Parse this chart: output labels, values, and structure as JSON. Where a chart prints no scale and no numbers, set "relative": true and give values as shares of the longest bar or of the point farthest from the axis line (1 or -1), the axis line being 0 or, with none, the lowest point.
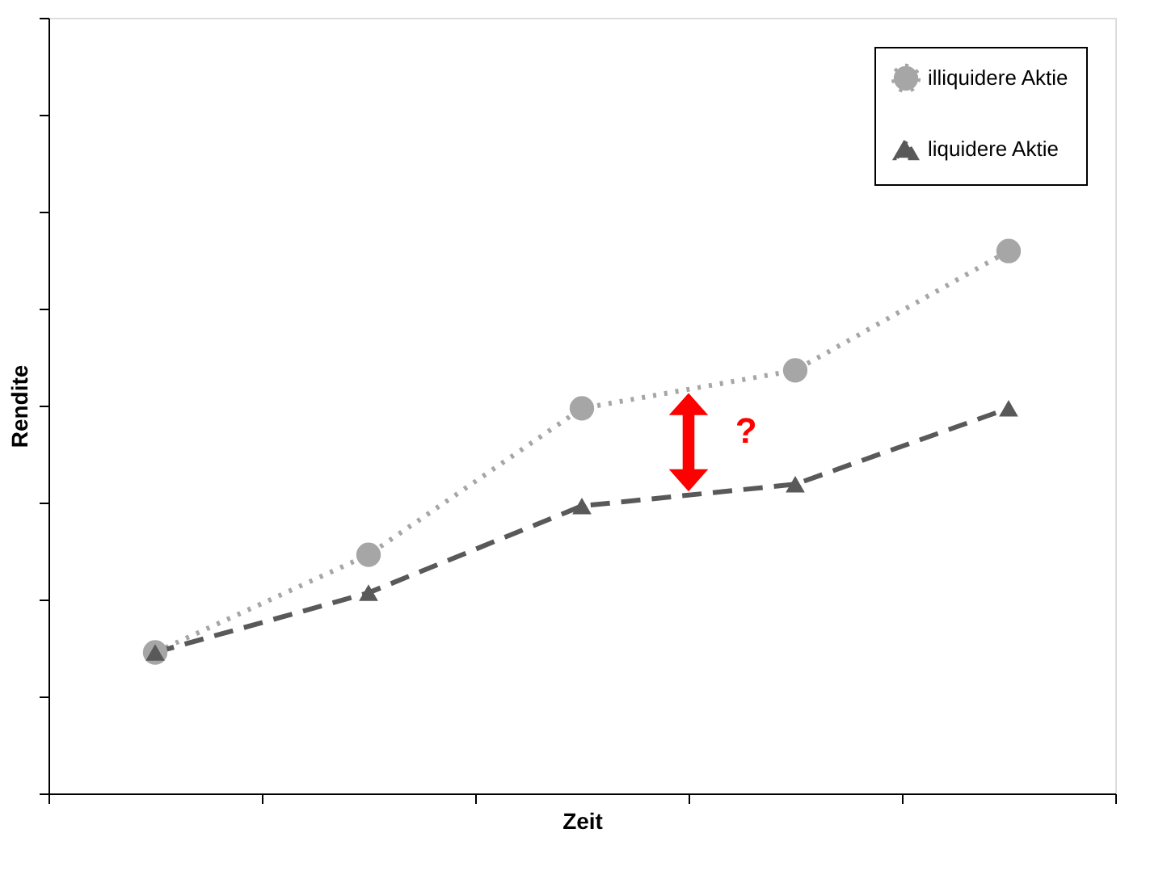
{
  "chart_data": {
    "type": "line",
    "xlabel": "Zeit",
    "ylabel": "Rendite",
    "relative": true,
    "categories": [
      null,
      null,
      null,
      null,
      null
    ],
    "series": [
      {
        "name": "illiquidere Aktie",
        "color": "#a6a6a6",
        "values": [
          0.26,
          0.44,
          0.71,
          0.78,
          1.0
        ],
        "marker": "circle",
        "line_style": "dotted"
      },
      {
        "name": "liquidere Aktie",
        "color": "#595959",
        "values": [
          0.26,
          0.37,
          0.53,
          0.57,
          0.71
        ],
        "marker": "triangle",
        "line_style": "dashed"
      }
    ],
    "annotations": [
      "?"
    ],
    "legend": "top right",
    "grid": false
  }
}
